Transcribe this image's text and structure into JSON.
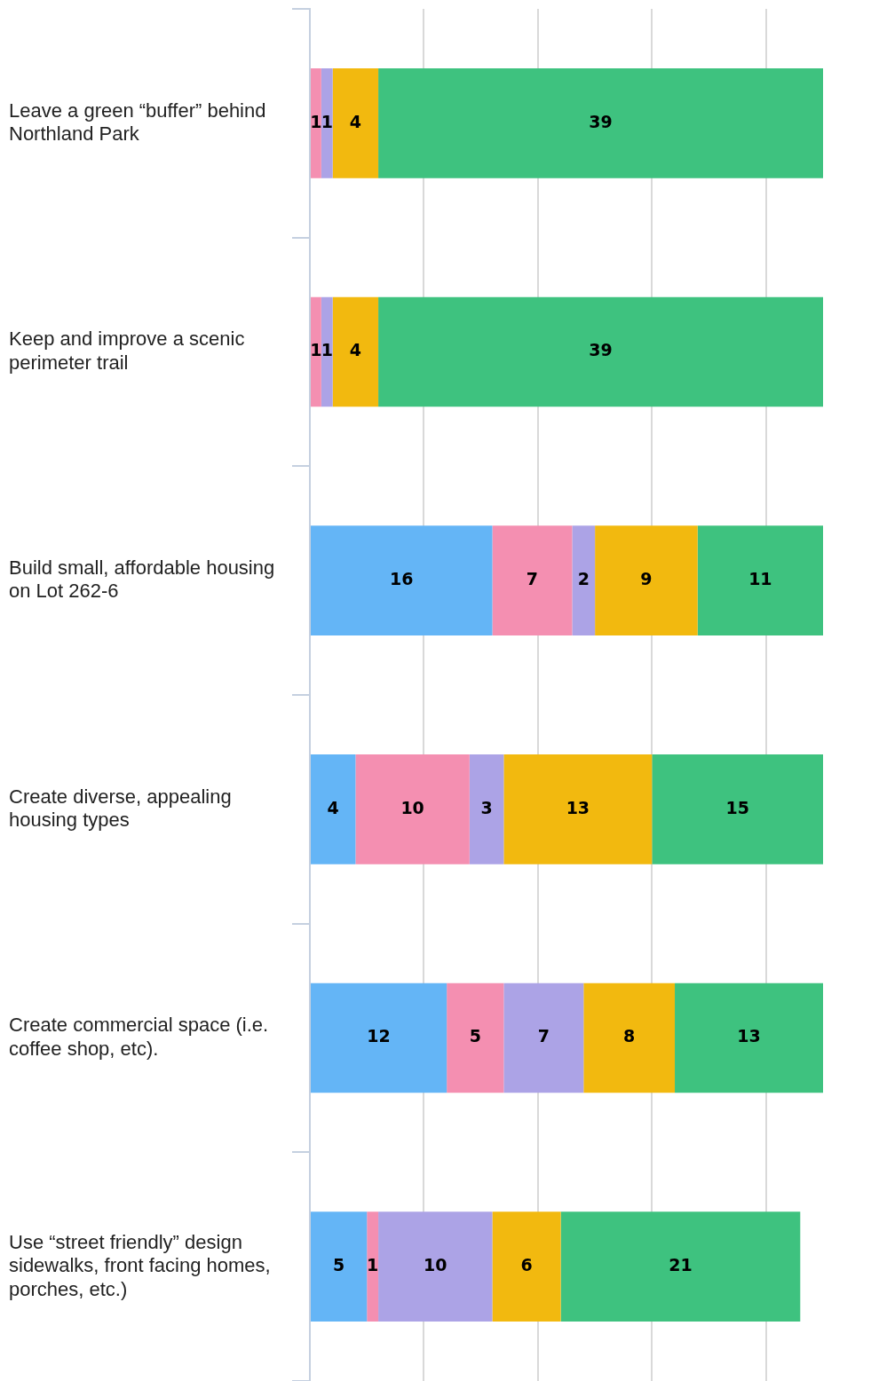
{
  "chart_data": {
    "type": "bar",
    "orientation": "horizontal",
    "stacked": true,
    "categories": [
      "Leave a green “buffer” behind Northland Park",
      "Keep and improve a scenic perimeter trail",
      "Build small, affordable housing on Lot 262-6",
      "Create diverse, appealing housing types",
      "Create commercial space (i.e. coffee shop, etc).",
      "Use “street friendly” design sidewalks, front facing homes, porches, etc.)"
    ],
    "series": [
      {
        "color": "#64b5f6",
        "values": [
          null,
          null,
          16,
          4,
          12,
          5
        ]
      },
      {
        "color": "#f48fb1",
        "values": [
          1,
          1,
          7,
          10,
          5,
          1
        ]
      },
      {
        "color": "#aca3e6",
        "values": [
          1,
          1,
          2,
          3,
          7,
          10
        ]
      },
      {
        "color": "#f2b90f",
        "values": [
          4,
          4,
          9,
          13,
          8,
          6
        ]
      },
      {
        "color": "#3ec27f",
        "values": [
          39,
          39,
          11,
          15,
          13,
          21
        ]
      }
    ],
    "xlim": [
      0,
      45
    ],
    "xticks": [
      {
        "value": 0,
        "label": null
      },
      {
        "value": 10,
        "label": null
      },
      {
        "value": 20,
        "label": null
      },
      {
        "value": 30,
        "label": null
      },
      {
        "value": 40,
        "label": null
      }
    ],
    "tick_labels": "y",
    "grid": "x",
    "data_labels": true,
    "legend": false
  }
}
